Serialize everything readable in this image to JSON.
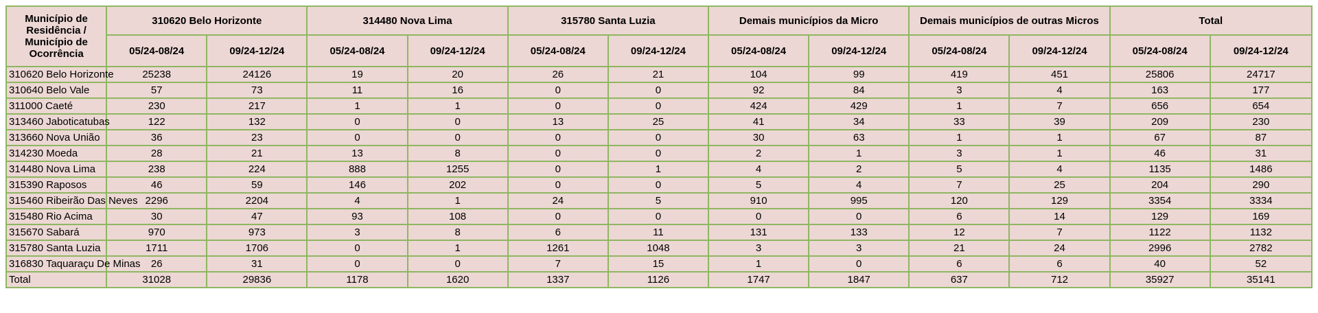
{
  "corner_header": "Município de Residência / Município de Ocorrência",
  "groups": [
    "310620 Belo Horizonte",
    "314480 Nova Lima",
    "315780 Santa Luzia",
    "Demais municípios da Micro",
    "Demais municípios de outras Micros",
    "Total"
  ],
  "periods": [
    "05/24-08/24",
    "09/24-12/24"
  ],
  "rows": [
    {
      "label": "310620 Belo Horizonte",
      "values": [
        "25238",
        "24126",
        "19",
        "20",
        "26",
        "21",
        "104",
        "99",
        "419",
        "451",
        "25806",
        "24717"
      ]
    },
    {
      "label": "310640 Belo Vale",
      "values": [
        "57",
        "73",
        "11",
        "16",
        "0",
        "0",
        "92",
        "84",
        "3",
        "4",
        "163",
        "177"
      ]
    },
    {
      "label": "311000 Caeté",
      "values": [
        "230",
        "217",
        "1",
        "1",
        "0",
        "0",
        "424",
        "429",
        "1",
        "7",
        "656",
        "654"
      ]
    },
    {
      "label": "313460 Jaboticatubas",
      "values": [
        "122",
        "132",
        "0",
        "0",
        "13",
        "25",
        "41",
        "34",
        "33",
        "39",
        "209",
        "230"
      ]
    },
    {
      "label": "313660 Nova União",
      "values": [
        "36",
        "23",
        "0",
        "0",
        "0",
        "0",
        "30",
        "63",
        "1",
        "1",
        "67",
        "87"
      ]
    },
    {
      "label": "314230 Moeda",
      "values": [
        "28",
        "21",
        "13",
        "8",
        "0",
        "0",
        "2",
        "1",
        "3",
        "1",
        "46",
        "31"
      ]
    },
    {
      "label": "314480 Nova Lima",
      "values": [
        "238",
        "224",
        "888",
        "1255",
        "0",
        "1",
        "4",
        "2",
        "5",
        "4",
        "1135",
        "1486"
      ]
    },
    {
      "label": "315390 Raposos",
      "values": [
        "46",
        "59",
        "146",
        "202",
        "0",
        "0",
        "5",
        "4",
        "7",
        "25",
        "204",
        "290"
      ]
    },
    {
      "label": "315460 Ribeirão Das Neves",
      "values": [
        "2296",
        "2204",
        "4",
        "1",
        "24",
        "5",
        "910",
        "995",
        "120",
        "129",
        "3354",
        "3334"
      ]
    },
    {
      "label": "315480 Rio Acima",
      "values": [
        "30",
        "47",
        "93",
        "108",
        "0",
        "0",
        "0",
        "0",
        "6",
        "14",
        "129",
        "169"
      ]
    },
    {
      "label": "315670 Sabará",
      "values": [
        "970",
        "973",
        "3",
        "8",
        "6",
        "11",
        "131",
        "133",
        "12",
        "7",
        "1122",
        "1132"
      ]
    },
    {
      "label": "315780 Santa Luzia",
      "values": [
        "1711",
        "1706",
        "0",
        "1",
        "1261",
        "1048",
        "3",
        "3",
        "21",
        "24",
        "2996",
        "2782"
      ]
    },
    {
      "label": "316830 Taquaraçu De Minas",
      "values": [
        "26",
        "31",
        "0",
        "0",
        "7",
        "15",
        "1",
        "0",
        "6",
        "6",
        "40",
        "52"
      ]
    },
    {
      "label": "Total",
      "values": [
        "31028",
        "29836",
        "1178",
        "1620",
        "1337",
        "1126",
        "1747",
        "1847",
        "637",
        "712",
        "35927",
        "35141"
      ]
    }
  ]
}
